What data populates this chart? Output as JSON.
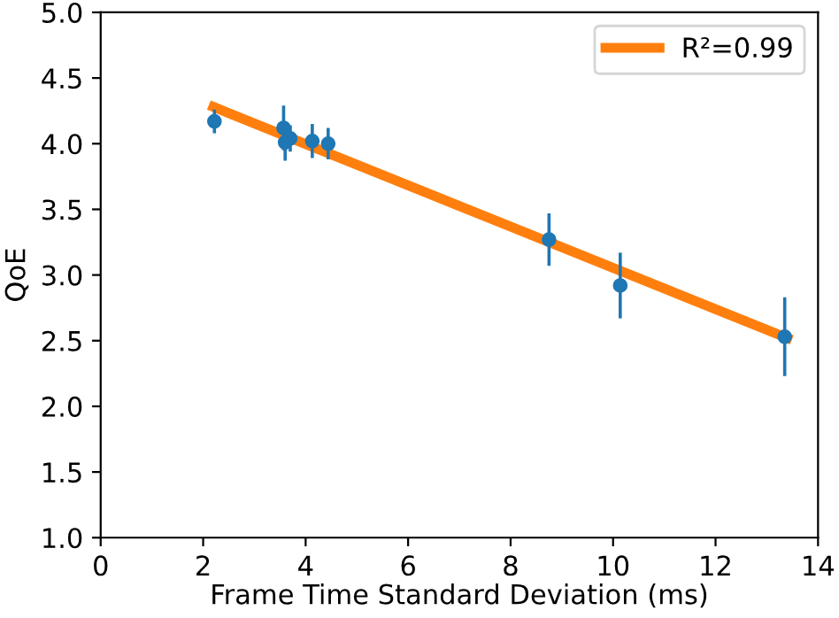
{
  "chart_data": {
    "type": "scatter",
    "xlabel": "Frame Time Standard Deviation (ms)",
    "ylabel": "QoE",
    "xlim": [
      0,
      14
    ],
    "xticks": [
      0,
      2,
      4,
      6,
      8,
      10,
      12,
      14
    ],
    "ylim": [
      1.0,
      5.0
    ],
    "yticks": [
      {
        "value": 1.0,
        "label": "1.0"
      },
      {
        "value": 1.5,
        "label": "1.5"
      },
      {
        "value": 2.0,
        "label": "2.0"
      },
      {
        "value": 2.5,
        "label": "2.5"
      },
      {
        "value": 3.0,
        "label": "3.0"
      },
      {
        "value": 3.5,
        "label": "3.5"
      },
      {
        "value": 4.0,
        "label": "4.0"
      },
      {
        "value": 4.5,
        "label": "4.5"
      },
      {
        "value": 5.0,
        "label": "5.0"
      }
    ],
    "legend": "top right",
    "grid": false,
    "series": [
      {
        "marker": "circle",
        "color": "#1f77b4",
        "x": [
          2.22,
          3.57,
          3.6,
          3.7,
          4.13,
          4.44,
          8.75,
          10.14,
          13.35
        ],
        "values": [
          4.17,
          4.12,
          4.01,
          4.04,
          4.02,
          4.0,
          3.27,
          2.92,
          2.53
        ],
        "errors": [
          0.09,
          0.17,
          0.14,
          0.1,
          0.13,
          0.12,
          0.2,
          0.25,
          0.3
        ]
      },
      {
        "type": "line",
        "name": "R²=0.99",
        "color": "#ff7f0e",
        "x": [
          2.2,
          13.4
        ],
        "values": [
          4.28,
          2.52
        ]
      }
    ]
  }
}
